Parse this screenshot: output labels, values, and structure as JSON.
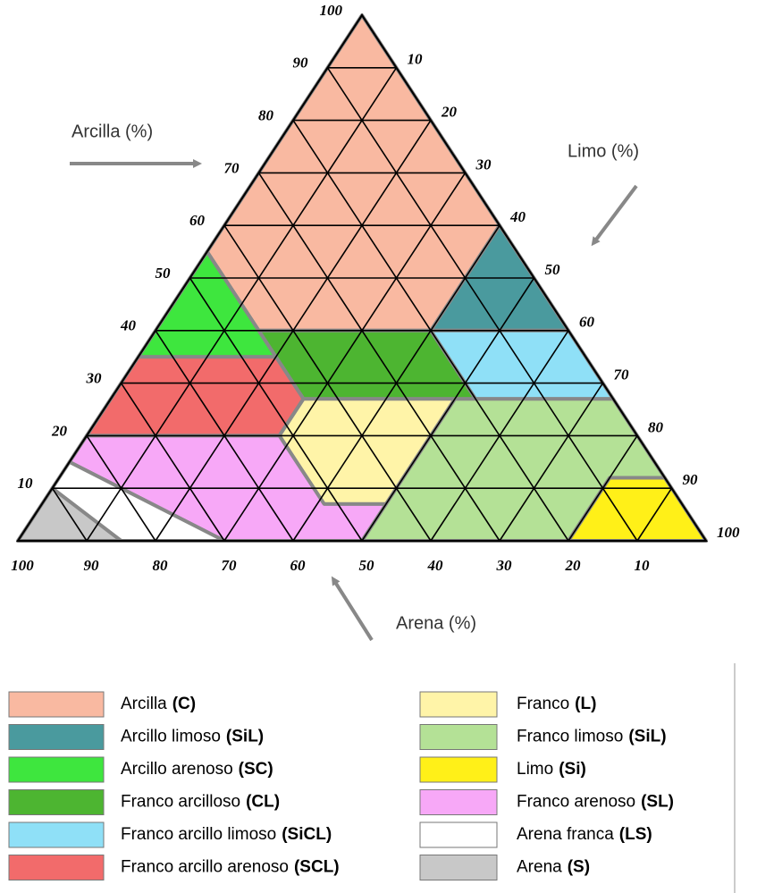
{
  "axis_labels": {
    "clay": "Arcilla (%)",
    "silt": "Limo (%)",
    "sand": "Arena (%)"
  },
  "clay_ticks": [
    10,
    20,
    30,
    40,
    50,
    60,
    70,
    80,
    90,
    100
  ],
  "silt_ticks": [
    10,
    20,
    30,
    40,
    50,
    60,
    70,
    80,
    90,
    100
  ],
  "sand_ticks": [
    100,
    90,
    80,
    70,
    60,
    50,
    40,
    30,
    20,
    10
  ],
  "legend": [
    {
      "name": "Arcilla",
      "code": "(C)",
      "color": "#f9b9a1"
    },
    {
      "name": "Arcillo limoso",
      "code": "(SiL)",
      "color": "#4a9a9e"
    },
    {
      "name": "Arcillo arenoso",
      "code": "(SC)",
      "color": "#3ee63e"
    },
    {
      "name": "Franco arcilloso",
      "code": "(CL)",
      "color": "#4db531"
    },
    {
      "name": "Franco arcillo limoso",
      "code": "(SiCL)",
      "color": "#8fe0f7"
    },
    {
      "name": "Franco arcillo arenoso",
      "code": "(SCL)",
      "color": "#f26b6b"
    },
    {
      "name": "Franco",
      "code": "(L)",
      "color": "#fff4a8"
    },
    {
      "name": "Franco limoso",
      "code": "(SiL)",
      "color": "#b4e196"
    },
    {
      "name": "Limo",
      "code": "(Si)",
      "color": "#fff018"
    },
    {
      "name": "Franco arenoso",
      "code": "(SL)",
      "color": "#f7a8f7"
    },
    {
      "name": "Arena franca",
      "code": "(LS)",
      "color": "#ffffff"
    },
    {
      "name": "Arena",
      "code": "(S)",
      "color": "#c8c8c8"
    }
  ]
}
